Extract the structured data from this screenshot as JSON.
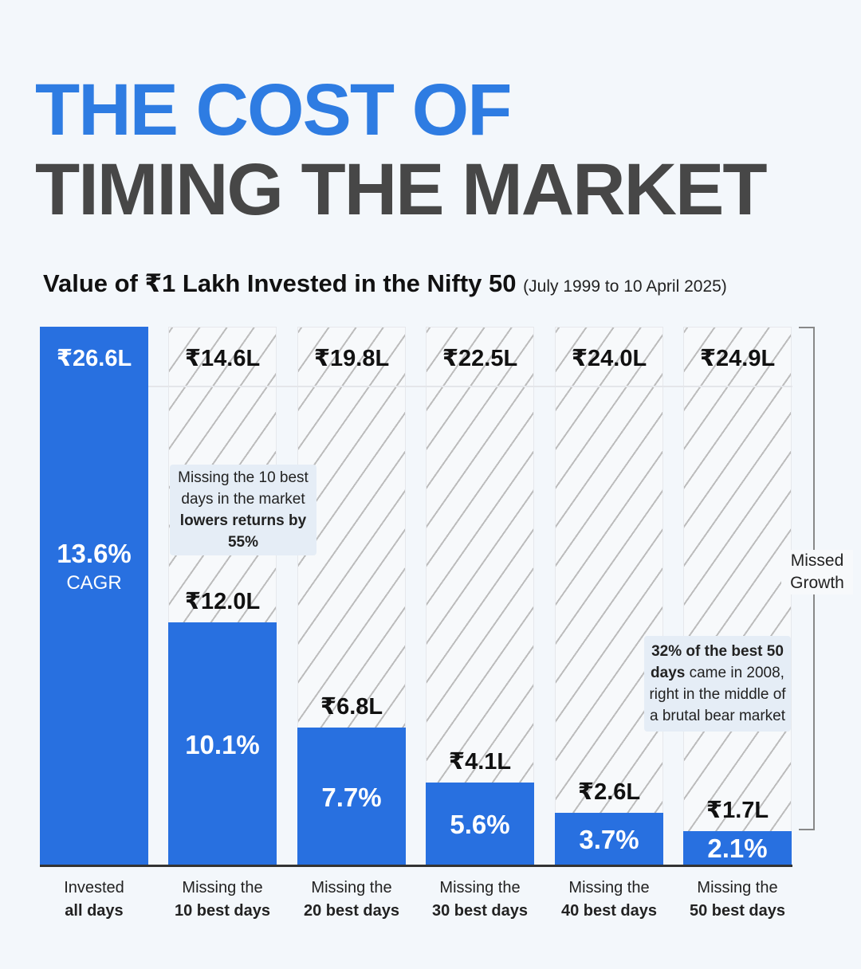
{
  "title_line1": "THE COST OF",
  "title_line2": "TIMING THE MARKET",
  "chart_data": {
    "type": "bar",
    "title": "Value of ₹1 Lakh Invested in the Nifty 50",
    "subtitle": "(July 1999 to 10 April 2025)",
    "categories": [
      {
        "line1": "Invested",
        "line2": "all days"
      },
      {
        "line1": "Missing the",
        "line2": "10 best days"
      },
      {
        "line1": "Missing the",
        "line2": "20 best days"
      },
      {
        "line1": "Missing the",
        "line2": "30 best days"
      },
      {
        "line1": "Missing the",
        "line2": "40 best days"
      },
      {
        "line1": "Missing the",
        "line2": "50 best days"
      }
    ],
    "values_lakh": [
      26.6,
      12.0,
      6.8,
      4.1,
      2.6,
      1.7
    ],
    "value_labels": [
      "₹26.6L",
      "₹12.0L",
      "₹6.8L",
      "₹4.1L",
      "₹2.6L",
      "₹1.7L"
    ],
    "missed_growth_labels": [
      "₹26.6L",
      "₹14.6L",
      "₹19.8L",
      "₹22.5L",
      "₹24.0L",
      "₹24.9L"
    ],
    "cagr_labels": [
      "13.6%",
      "10.1%",
      "7.7%",
      "5.6%",
      "3.7%",
      "2.1%"
    ],
    "cagr_values": [
      13.6,
      10.1,
      7.7,
      5.6,
      3.7,
      2.1
    ],
    "cagr_caption": "CAGR",
    "ylim": [
      0,
      26.6
    ],
    "bracket_label_1": "Missed",
    "bracket_label_2": "Growth",
    "annotations": [
      {
        "plain": "Missing the 10 best days in the market ",
        "bold": "lowers returns by 55%"
      },
      {
        "bold": "32% of the best 50 days",
        "plain": " came in 2008, right in the middle of a brutal bear market"
      }
    ],
    "colors": {
      "bar": "#2870e0",
      "title_blue": "#2e7ce2",
      "title_dark": "#474747"
    }
  }
}
